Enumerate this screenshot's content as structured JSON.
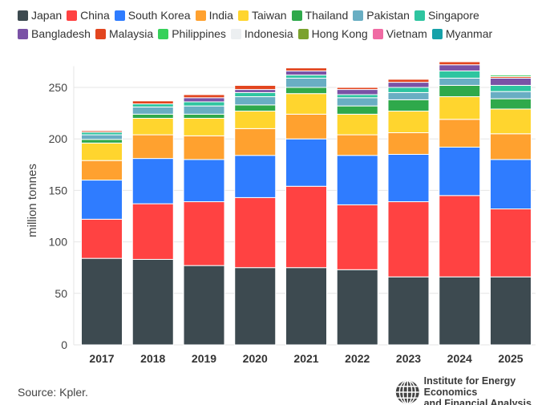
{
  "chart_data": {
    "type": "bar",
    "stacked": true,
    "title": "",
    "xlabel": "",
    "ylabel": "million tonnes",
    "ylim": [
      0,
      280
    ],
    "yticks": [
      0,
      50,
      100,
      150,
      200,
      250
    ],
    "grid": true,
    "legend_placement": "top",
    "categories": [
      "2017",
      "2018",
      "2019",
      "2020",
      "2021",
      "2022",
      "2023",
      "2024",
      "2025"
    ],
    "series": [
      {
        "name": "Japan",
        "color": "#3d4a50",
        "values": [
          84,
          83,
          77,
          75,
          75,
          73,
          66,
          66,
          66
        ]
      },
      {
        "name": "China",
        "color": "#ff4242",
        "values": [
          38,
          54,
          62,
          68,
          79,
          63,
          73,
          79,
          66
        ]
      },
      {
        "name": "South Korea",
        "color": "#2f7cff",
        "values": [
          38,
          44,
          41,
          41,
          46,
          48,
          46,
          47,
          48
        ]
      },
      {
        "name": "India",
        "color": "#ffa12f",
        "values": [
          19,
          23,
          23,
          26,
          24,
          20,
          21,
          27,
          25
        ]
      },
      {
        "name": "Taiwan",
        "color": "#ffd52e",
        "values": [
          17,
          16,
          17,
          17,
          20,
          20,
          21,
          22,
          24
        ]
      },
      {
        "name": "Thailand",
        "color": "#2fa94b",
        "values": [
          3.5,
          4,
          4,
          6,
          6,
          8,
          11,
          11,
          10
        ]
      },
      {
        "name": "Pakistan",
        "color": "#69aec3",
        "values": [
          4.5,
          7,
          8,
          8,
          9,
          8,
          7,
          7,
          7
        ]
      },
      {
        "name": "Singapore",
        "color": "#2ec5a0",
        "values": [
          2.5,
          3,
          4,
          4,
          3,
          3,
          5,
          7,
          6
        ]
      },
      {
        "name": "Bangladesh",
        "color": "#7a52a6",
        "values": [
          0,
          0,
          4,
          3,
          4,
          5,
          5,
          6,
          7
        ]
      },
      {
        "name": "Malaysia",
        "color": "#e2451f",
        "values": [
          1.5,
          3,
          3,
          4,
          3,
          2,
          3,
          3,
          1.5
        ]
      },
      {
        "name": "Philippines",
        "color": "#36d15a",
        "values": [
          0,
          0,
          0,
          0,
          0,
          0,
          0,
          0,
          1.5
        ]
      },
      {
        "name": "Indonesia",
        "color": "#eceff1",
        "values": [
          0.5,
          0.5,
          0.5,
          0.5,
          0.5,
          0.5,
          0.5,
          0.5,
          0.5
        ]
      },
      {
        "name": "Hong Kong",
        "color": "#7ba22d",
        "values": [
          0,
          0,
          0,
          0,
          0,
          0,
          0,
          0,
          0
        ]
      },
      {
        "name": "Vietnam",
        "color": "#f06aa3",
        "values": [
          0,
          0,
          0,
          0,
          0,
          0,
          0,
          0.5,
          0
        ]
      },
      {
        "name": "Myanmar",
        "color": "#16a1a9",
        "values": [
          0,
          0,
          0,
          0,
          0,
          0,
          0,
          0,
          0
        ]
      }
    ]
  },
  "source": "Source: Kpler.",
  "logo": {
    "line1": "Institute for Energy Economics",
    "line2": "and Financial Analysis"
  }
}
